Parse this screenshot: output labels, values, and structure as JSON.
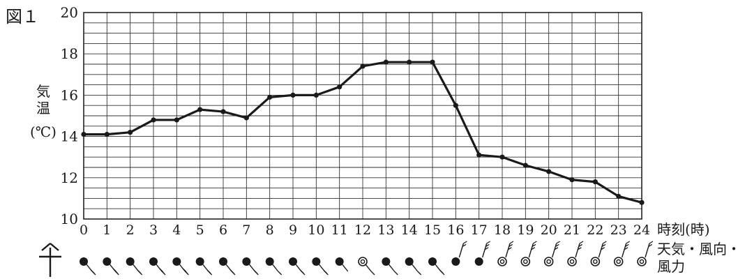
{
  "figure_label": "図１",
  "chart_data": {
    "type": "line",
    "title": "",
    "ylabel": [
      "気",
      "温",
      "(℃)"
    ],
    "xlabel": "時刻(時)",
    "ylim": [
      10,
      20
    ],
    "xlim": [
      0,
      24
    ],
    "y_ticks": [
      10,
      12,
      14,
      16,
      18,
      20
    ],
    "x": [
      0,
      1,
      2,
      3,
      4,
      5,
      6,
      7,
      8,
      9,
      10,
      11,
      12,
      13,
      14,
      15,
      16,
      17,
      18,
      19,
      20,
      21,
      22,
      23,
      24
    ],
    "values": [
      14.1,
      14.1,
      14.2,
      14.8,
      14.8,
      15.3,
      15.2,
      14.9,
      15.9,
      16.0,
      16.0,
      16.4,
      17.4,
      17.6,
      17.6,
      17.6,
      15.5,
      13.1,
      13.0,
      12.6,
      12.3,
      11.9,
      11.8,
      11.1,
      10.8
    ],
    "grid": true
  },
  "weather_row": {
    "label_lines": [
      "天気・風向・",
      "風力"
    ],
    "symbols": [
      {
        "hour": 0,
        "weather": "rain",
        "barbs": 2
      },
      {
        "hour": 1,
        "weather": "rain",
        "barbs": 3
      },
      {
        "hour": 2,
        "weather": "rain",
        "barbs": 2
      },
      {
        "hour": 3,
        "weather": "rain",
        "barbs": 3
      },
      {
        "hour": 4,
        "weather": "rain",
        "barbs": 3
      },
      {
        "hour": 5,
        "weather": "rain",
        "barbs": 2
      },
      {
        "hour": 6,
        "weather": "rain",
        "barbs": 2
      },
      {
        "hour": 7,
        "weather": "rain",
        "barbs": 2
      },
      {
        "hour": 8,
        "weather": "rain",
        "barbs": 1
      },
      {
        "hour": 9,
        "weather": "rain",
        "barbs": 2
      },
      {
        "hour": 10,
        "weather": "rain",
        "barbs": 2
      },
      {
        "hour": 11,
        "weather": "rain",
        "barbs": 0
      },
      {
        "hour": 12,
        "weather": "cloudy",
        "barbs": 1
      },
      {
        "hour": 13,
        "weather": "rain",
        "barbs": 1
      },
      {
        "hour": 14,
        "weather": "rain",
        "barbs": 1
      },
      {
        "hour": 15,
        "weather": "rain",
        "barbs": 2
      },
      {
        "hour": 16,
        "weather": "rain",
        "barbs": 2
      },
      {
        "hour": 17,
        "weather": "rain",
        "barbs": 3
      },
      {
        "hour": 18,
        "weather": "cloudy",
        "barbs": 3
      },
      {
        "hour": 19,
        "weather": "cloudy",
        "barbs": 3
      },
      {
        "hour": 20,
        "weather": "cloudy",
        "barbs": 3
      },
      {
        "hour": 21,
        "weather": "cloudy",
        "barbs": 3
      },
      {
        "hour": 22,
        "weather": "cloudy",
        "barbs": 3
      },
      {
        "hour": 23,
        "weather": "cloudy",
        "barbs": 3
      },
      {
        "hour": 24,
        "weather": "cloudy",
        "barbs": 2
      }
    ]
  }
}
